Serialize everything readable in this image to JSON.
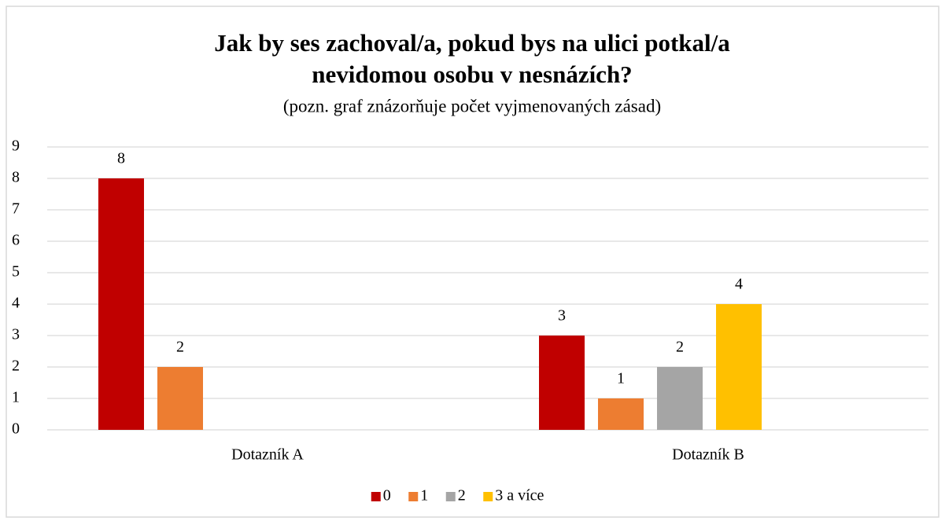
{
  "chart_data": {
    "type": "bar",
    "title": [
      "Jak by ses zachoval/a, pokud bys na ulici potkal/a",
      "nevidomou osobu v nesnázích?"
    ],
    "subtitle": "(pozn. graf znázorňuje počet vyjmenovaných zásad)",
    "categories": [
      "Dotazník A",
      "Dotazník B"
    ],
    "series": [
      {
        "name": "0",
        "color": "#c00000",
        "values": [
          8,
          3
        ]
      },
      {
        "name": "1",
        "color": "#ed7d31",
        "values": [
          2,
          1
        ]
      },
      {
        "name": "2",
        "color": "#a5a5a5",
        "values": [
          null,
          2
        ]
      },
      {
        "name": "3 a více",
        "color": "#ffc000",
        "values": [
          null,
          4
        ]
      }
    ],
    "ylim": [
      0,
      9
    ],
    "yticks": [
      0,
      1,
      2,
      3,
      4,
      5,
      6,
      7,
      8,
      9
    ],
    "grid": true,
    "legend": "bottom"
  }
}
